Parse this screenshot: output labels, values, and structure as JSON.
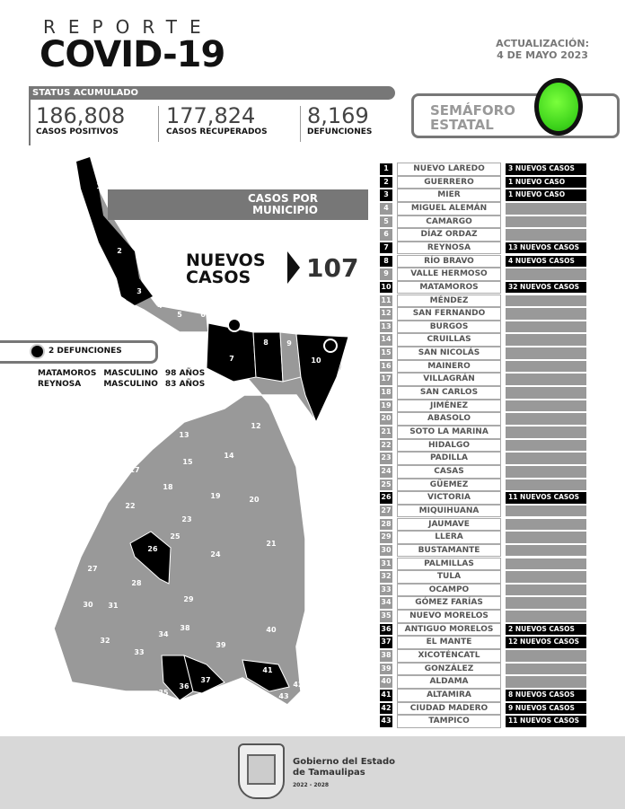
{
  "header": {
    "kicker": "REPORTE",
    "title": "COVID-19",
    "update_label": "ACTUALIZACIÓN:",
    "update_date": "4 DE MAYO 2023"
  },
  "status": {
    "title": "STATUS ACUMULADO",
    "stats": [
      {
        "value": "186,808",
        "label": "CASOS POSITIVOS"
      },
      {
        "value": "177,824",
        "label": "CASOS RECUPERADOS"
      },
      {
        "value": "8,169",
        "label": "DEFUNCIONES"
      }
    ]
  },
  "semaforo": {
    "line1": "SEMÁFORO",
    "line2": "ESTATAL",
    "color": "green",
    "hex": "#3bd11a"
  },
  "casos_por_municipio": {
    "line1": "CASOS POR",
    "line2": "MUNICIPIO"
  },
  "nuevos": {
    "line1": "NUEVOS",
    "line2": "CASOS",
    "value": "107"
  },
  "defunciones": {
    "label": "2 DEFUNCIONES",
    "rows": [
      {
        "municipio": "MATAMOROS",
        "sexo": "MASCULINO",
        "edad": "98 AÑOS"
      },
      {
        "municipio": "REYNOSA",
        "sexo": "MASCULINO",
        "edad": "83 AÑOS"
      }
    ]
  },
  "colors": {
    "active": "#000000",
    "inactive": "#999999"
  },
  "municipios": [
    {
      "num": "1",
      "name": "NUEVO LAREDO",
      "cases": "3 NUEVOS CASOS"
    },
    {
      "num": "2",
      "name": "GUERRERO",
      "cases": "1 NUEVO CASO"
    },
    {
      "num": "3",
      "name": "MIER",
      "cases": "1 NUEVO CASO"
    },
    {
      "num": "4",
      "name": "MIGUEL ALEMÁN",
      "cases": ""
    },
    {
      "num": "5",
      "name": "CAMARGO",
      "cases": ""
    },
    {
      "num": "6",
      "name": "DÍAZ ORDAZ",
      "cases": ""
    },
    {
      "num": "7",
      "name": "REYNOSA",
      "cases": "13 NUEVOS CASOS"
    },
    {
      "num": "8",
      "name": "RÍO BRAVO",
      "cases": "4 NUEVOS CASOS"
    },
    {
      "num": "9",
      "name": "VALLE HERMOSO",
      "cases": ""
    },
    {
      "num": "10",
      "name": "MATAMOROS",
      "cases": "32 NUEVOS CASOS"
    },
    {
      "num": "11",
      "name": "MÉNDEZ",
      "cases": ""
    },
    {
      "num": "12",
      "name": "SAN FERNANDO",
      "cases": ""
    },
    {
      "num": "13",
      "name": "BURGOS",
      "cases": ""
    },
    {
      "num": "14",
      "name": "CRUILLAS",
      "cases": ""
    },
    {
      "num": "15",
      "name": "SAN NICOLÁS",
      "cases": ""
    },
    {
      "num": "16",
      "name": "MAINERO",
      "cases": ""
    },
    {
      "num": "17",
      "name": "VILLAGRÁN",
      "cases": ""
    },
    {
      "num": "18",
      "name": "SAN CARLOS",
      "cases": ""
    },
    {
      "num": "19",
      "name": "JIMÉNEZ",
      "cases": ""
    },
    {
      "num": "20",
      "name": "ABASOLO",
      "cases": ""
    },
    {
      "num": "21",
      "name": "SOTO LA MARINA",
      "cases": ""
    },
    {
      "num": "22",
      "name": "HIDALGO",
      "cases": ""
    },
    {
      "num": "23",
      "name": "PADILLA",
      "cases": ""
    },
    {
      "num": "24",
      "name": "CASAS",
      "cases": ""
    },
    {
      "num": "25",
      "name": "GÜEMEZ",
      "cases": ""
    },
    {
      "num": "26",
      "name": "VICTORIA",
      "cases": "11 NUEVOS CASOS"
    },
    {
      "num": "27",
      "name": "MIQUIHUANA",
      "cases": ""
    },
    {
      "num": "28",
      "name": "JAUMAVE",
      "cases": ""
    },
    {
      "num": "29",
      "name": "LLERA",
      "cases": ""
    },
    {
      "num": "30",
      "name": "BUSTAMANTE",
      "cases": ""
    },
    {
      "num": "31",
      "name": "PALMILLAS",
      "cases": ""
    },
    {
      "num": "32",
      "name": "TULA",
      "cases": ""
    },
    {
      "num": "33",
      "name": "OCAMPO",
      "cases": ""
    },
    {
      "num": "34",
      "name": "GÓMEZ FARÍAS",
      "cases": ""
    },
    {
      "num": "35",
      "name": "NUEVO MORELOS",
      "cases": ""
    },
    {
      "num": "36",
      "name": "ANTIGUO MORELOS",
      "cases": "2 NUEVOS CASOS"
    },
    {
      "num": "37",
      "name": "EL MANTE",
      "cases": "12 NUEVOS CASOS"
    },
    {
      "num": "38",
      "name": "XICOTÉNCATL",
      "cases": ""
    },
    {
      "num": "39",
      "name": "GONZÁLEZ",
      "cases": ""
    },
    {
      "num": "40",
      "name": "ALDAMA",
      "cases": ""
    },
    {
      "num": "41",
      "name": "ALTAMIRA",
      "cases": "8 NUEVOS CASOS"
    },
    {
      "num": "42",
      "name": "CIUDAD MADERO",
      "cases": "9 NUEVOS CASOS"
    },
    {
      "num": "43",
      "name": "TAMPICO",
      "cases": "11 NUEVOS CASOS"
    }
  ],
  "footer": {
    "line1": "Gobierno del Estado",
    "line2": "de Tamaulipas",
    "period": "2022 - 2028",
    "logo_text": "Escudo de Tamaulipas"
  }
}
